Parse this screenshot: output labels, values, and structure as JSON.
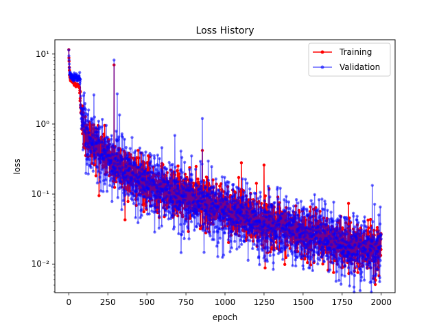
{
  "chart_data": {
    "type": "line",
    "title": "Loss History",
    "xlabel": "epoch",
    "ylabel": "loss",
    "yscale": "log",
    "xlim": [
      -89,
      2089
    ],
    "ylim": [
      0.0039,
      16
    ],
    "x_ticks": [
      0,
      250,
      500,
      750,
      1000,
      1250,
      1500,
      1750,
      2000
    ],
    "x_tick_labels": [
      "0",
      "250",
      "500",
      "750",
      "1000",
      "1250",
      "1500",
      "1750",
      "2000"
    ],
    "y_ticks": [
      0.01,
      0.1,
      1,
      10
    ],
    "y_tick_labels": [
      "10⁻²",
      "10⁻¹",
      "10⁰",
      "10¹"
    ],
    "grid": false,
    "legend_position": "top-right",
    "series": [
      {
        "name": "Training",
        "color": "#ff0000",
        "marker": "circle",
        "trend_x": [
          0,
          5,
          10,
          20,
          30,
          40,
          50,
          60,
          70,
          75,
          80,
          90,
          100,
          125,
          150,
          200,
          250,
          300,
          350,
          400,
          450,
          500,
          600,
          700,
          800,
          900,
          1000,
          1100,
          1200,
          1300,
          1400,
          1500,
          1600,
          1700,
          1800,
          1900,
          2000
        ],
        "trend_y": [
          10.5,
          5.0,
          4.4,
          4.1,
          3.9,
          3.7,
          3.6,
          3.5,
          3.4,
          2.5,
          1.3,
          0.95,
          0.8,
          0.65,
          0.55,
          0.45,
          0.35,
          0.28,
          0.23,
          0.19,
          0.16,
          0.14,
          0.12,
          0.1,
          0.085,
          0.072,
          0.062,
          0.052,
          0.044,
          0.037,
          0.031,
          0.027,
          0.024,
          0.021,
          0.019,
          0.018,
          0.017
        ],
        "spikes": [
          [
            290,
            7.0
          ],
          [
            855,
            0.42
          ],
          [
            1105,
            0.28
          ],
          [
            1250,
            0.26
          ]
        ]
      },
      {
        "name": "Validation",
        "color": "#0000ff",
        "marker": "circle",
        "trend_x": [
          0,
          5,
          10,
          20,
          30,
          40,
          50,
          60,
          70,
          75,
          80,
          90,
          100,
          125,
          150,
          200,
          250,
          300,
          350,
          400,
          450,
          500,
          600,
          700,
          800,
          900,
          1000,
          1100,
          1200,
          1300,
          1400,
          1500,
          1600,
          1700,
          1800,
          1900,
          2000
        ],
        "trend_y": [
          11.0,
          5.5,
          5.0,
          4.8,
          4.7,
          4.7,
          4.6,
          4.6,
          4.5,
          2.4,
          1.2,
          0.9,
          0.75,
          0.6,
          0.5,
          0.42,
          0.33,
          0.27,
          0.22,
          0.18,
          0.15,
          0.13,
          0.11,
          0.095,
          0.08,
          0.068,
          0.058,
          0.049,
          0.041,
          0.035,
          0.03,
          0.026,
          0.023,
          0.02,
          0.018,
          0.017,
          0.016
        ],
        "spikes": [
          [
            290,
            8.2
          ],
          [
            310,
            2.7
          ],
          [
            855,
            1.2
          ],
          [
            1990,
            0.0056
          ]
        ]
      }
    ]
  }
}
